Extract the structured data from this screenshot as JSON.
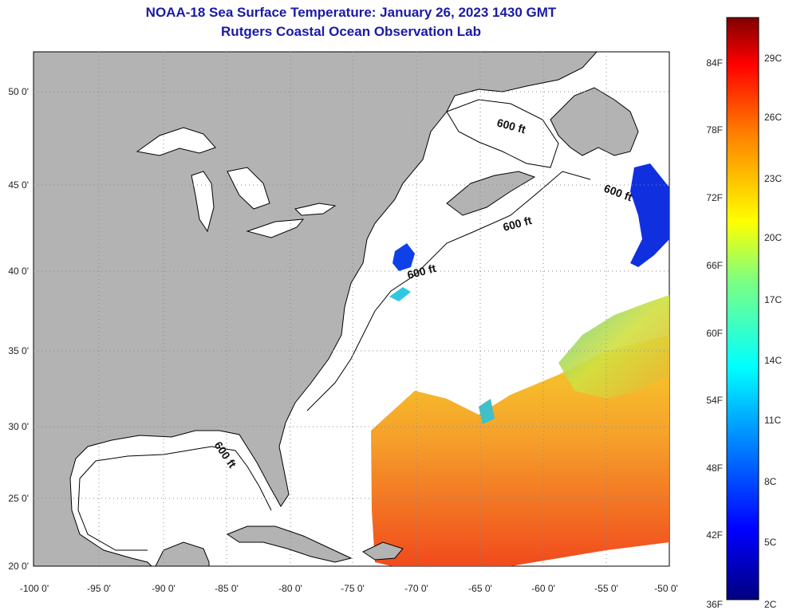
{
  "title": {
    "line1": "NOAA-18 Sea Surface Temperature:  January 26, 2023 1430 GMT",
    "line2": "Rutgers Coastal Ocean Observation Lab"
  },
  "map": {
    "lat_labels": [
      "50 0'",
      "45 0'",
      "40 0'",
      "35 0'",
      "30 0'",
      "25 0'",
      "20 0'"
    ],
    "lon_labels": [
      "-100 0'",
      "-95 0'",
      "-90 0'",
      "-85 0'",
      "-80 0'",
      "-75 0'",
      "-70 0'",
      "-65 0'",
      "-60 0'",
      "-55 0'",
      "-50 0'"
    ],
    "contour_labels": [
      "600 ft",
      "600 ft",
      "600 ft",
      "600 ft",
      "600 ft"
    ],
    "colors": {
      "land": "#b3b3b3",
      "water": "#ffffff"
    }
  },
  "colorbar": {
    "fahrenheit": [
      "84F",
      "78F",
      "72F",
      "66F",
      "60F",
      "54F",
      "48F",
      "42F",
      "36F"
    ],
    "celsius": [
      "29C",
      "26C",
      "23C",
      "20C",
      "17C",
      "14C",
      "11C",
      "8C",
      "5C",
      "2C"
    ]
  }
}
